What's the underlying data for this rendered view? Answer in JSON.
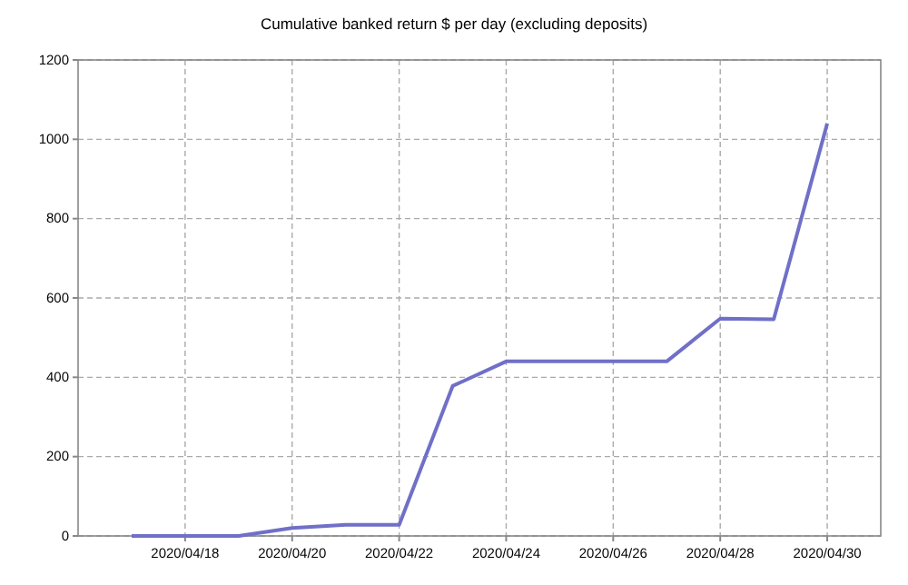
{
  "chart_data": {
    "type": "line",
    "title": "Cumulative banked return $ per day (excluding deposits)",
    "x": [
      "2020-04-17",
      "2020-04-18",
      "2020-04-19",
      "2020-04-20",
      "2020-04-21",
      "2020-04-22",
      "2020-04-23",
      "2020-04-24",
      "2020-04-25",
      "2020-04-26",
      "2020-04-27",
      "2020-04-28",
      "2020-04-29",
      "2020-04-30"
    ],
    "series": [
      {
        "color": "#7070c8",
        "values": [
          0,
          0,
          0,
          20,
          28,
          28,
          378,
          440,
          440,
          440,
          440,
          548,
          546,
          1040
        ]
      }
    ],
    "xlim": [
      "2020-04-16",
      "2020-05-01"
    ],
    "xticks": [
      {
        "value": "2020-04-18",
        "label": "2020/04/18"
      },
      {
        "value": "2020-04-20",
        "label": "2020/04/20"
      },
      {
        "value": "2020-04-22",
        "label": "2020/04/22"
      },
      {
        "value": "2020-04-24",
        "label": "2020/04/24"
      },
      {
        "value": "2020-04-26",
        "label": "2020/04/26"
      },
      {
        "value": "2020-04-28",
        "label": "2020/04/28"
      },
      {
        "value": "2020-04-30",
        "label": "2020/04/30"
      }
    ],
    "ylim": [
      0,
      1200
    ],
    "yticks": [
      0,
      200,
      400,
      600,
      800,
      1000,
      1200
    ],
    "grid": true,
    "line_style": "solid",
    "marker": "none"
  }
}
